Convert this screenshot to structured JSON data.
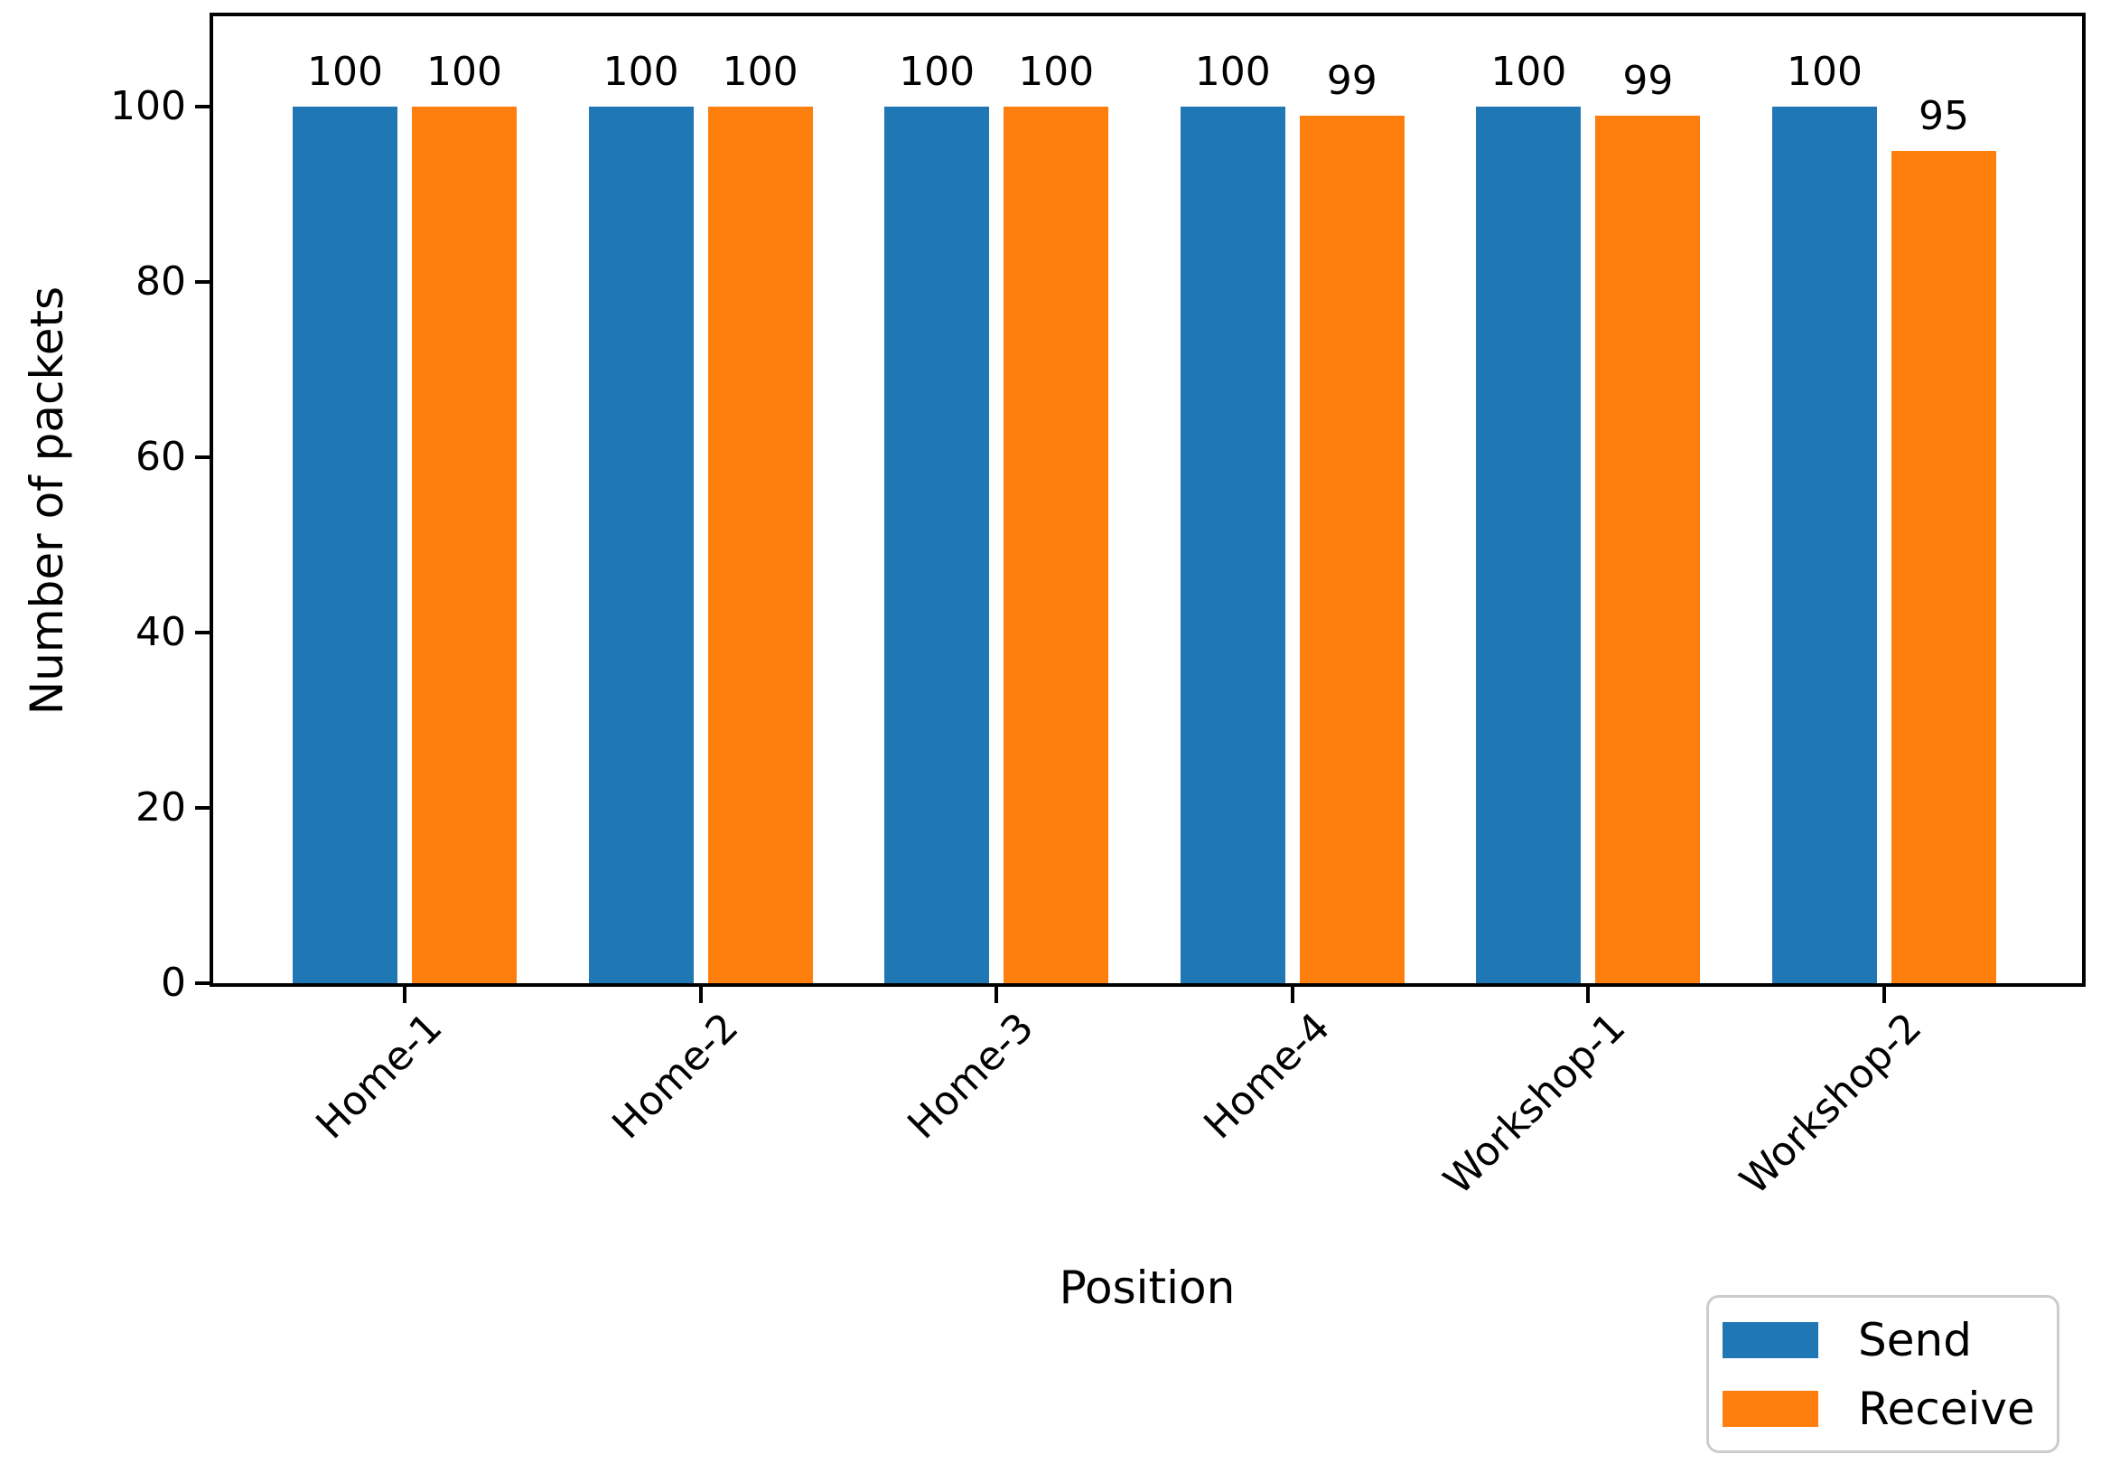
{
  "chart_data": {
    "type": "bar",
    "title": "",
    "xlabel": "Position",
    "ylabel": "Number of packets",
    "categories": [
      "Home-1",
      "Home-2",
      "Home-3",
      "Home-4",
      "Workshop-1",
      "Workshop-2"
    ],
    "series": [
      {
        "name": "Send",
        "color": "#1f77b4",
        "values": [
          100,
          100,
          100,
          100,
          100,
          100
        ]
      },
      {
        "name": "Receive",
        "color": "#ff7f0e",
        "values": [
          100,
          100,
          100,
          99,
          99,
          95
        ]
      }
    ],
    "yticks": [
      0,
      20,
      40,
      60,
      80,
      100
    ],
    "ylim": [
      0,
      110.3
    ],
    "grid": false,
    "bar_value_labels_shown": true,
    "x_tick_rotation_deg": 45,
    "legend": {
      "position": "lower-right-outside"
    }
  },
  "colors": {
    "send": "#1f77b4",
    "receive": "#ff7f0e",
    "axis": "#000000",
    "background": "#ffffff",
    "legend_border": "#cccccc"
  }
}
